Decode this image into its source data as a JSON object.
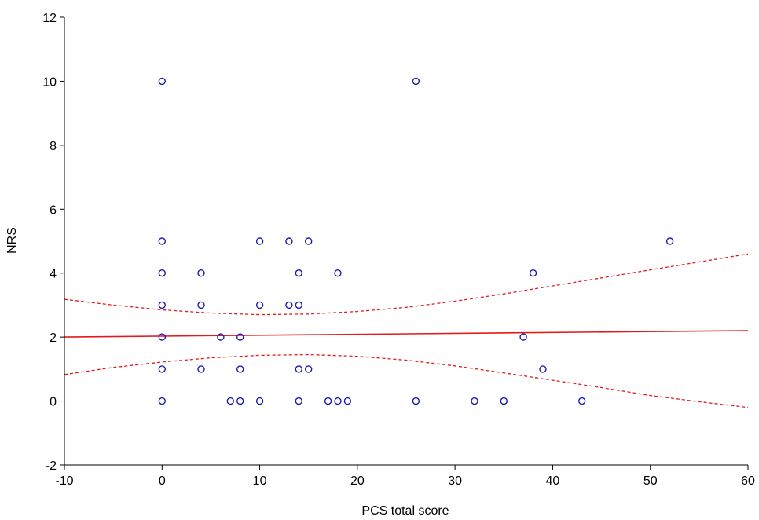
{
  "chart_data": {
    "type": "scatter",
    "title": "",
    "xlabel": "PCS total score",
    "ylabel": "NRS",
    "xlim": [
      -10,
      60
    ],
    "ylim": [
      -2,
      12
    ],
    "xticks": [
      -10,
      0,
      10,
      20,
      30,
      40,
      50,
      60
    ],
    "yticks": [
      -2,
      0,
      2,
      4,
      6,
      8,
      10,
      12
    ],
    "grid": false,
    "legend": "none",
    "colors": {
      "points": "#1a1ab8",
      "fit": "#e31a1c",
      "axis": "#000000"
    },
    "points": [
      {
        "x": 0,
        "y": 10
      },
      {
        "x": 26,
        "y": 10
      },
      {
        "x": 0,
        "y": 5
      },
      {
        "x": 10,
        "y": 5
      },
      {
        "x": 13,
        "y": 5
      },
      {
        "x": 15,
        "y": 5
      },
      {
        "x": 52,
        "y": 5
      },
      {
        "x": 0,
        "y": 4
      },
      {
        "x": 4,
        "y": 4
      },
      {
        "x": 14,
        "y": 4
      },
      {
        "x": 18,
        "y": 4
      },
      {
        "x": 38,
        "y": 4
      },
      {
        "x": 0,
        "y": 3
      },
      {
        "x": 4,
        "y": 3
      },
      {
        "x": 10,
        "y": 3
      },
      {
        "x": 13,
        "y": 3
      },
      {
        "x": 14,
        "y": 3
      },
      {
        "x": 0,
        "y": 2
      },
      {
        "x": 6,
        "y": 2
      },
      {
        "x": 8,
        "y": 2
      },
      {
        "x": 37,
        "y": 2
      },
      {
        "x": 0,
        "y": 1
      },
      {
        "x": 4,
        "y": 1
      },
      {
        "x": 8,
        "y": 1
      },
      {
        "x": 14,
        "y": 1
      },
      {
        "x": 15,
        "y": 1
      },
      {
        "x": 39,
        "y": 1
      },
      {
        "x": 0,
        "y": 0
      },
      {
        "x": 7,
        "y": 0
      },
      {
        "x": 8,
        "y": 0
      },
      {
        "x": 10,
        "y": 0
      },
      {
        "x": 14,
        "y": 0
      },
      {
        "x": 17,
        "y": 0
      },
      {
        "x": 18,
        "y": 0
      },
      {
        "x": 19,
        "y": 0
      },
      {
        "x": 26,
        "y": 0
      },
      {
        "x": 32,
        "y": 0
      },
      {
        "x": 35,
        "y": 0
      },
      {
        "x": 43,
        "y": 0
      }
    ],
    "regression_line": [
      {
        "x": -10,
        "y": 2.0
      },
      {
        "x": 60,
        "y": 2.2
      }
    ],
    "confidence_upper": [
      {
        "x": -10,
        "y": 3.18
      },
      {
        "x": -5,
        "y": 3.0
      },
      {
        "x": 0,
        "y": 2.85
      },
      {
        "x": 5,
        "y": 2.75
      },
      {
        "x": 10,
        "y": 2.7
      },
      {
        "x": 15,
        "y": 2.72
      },
      {
        "x": 20,
        "y": 2.8
      },
      {
        "x": 25,
        "y": 2.93
      },
      {
        "x": 30,
        "y": 3.12
      },
      {
        "x": 35,
        "y": 3.35
      },
      {
        "x": 40,
        "y": 3.6
      },
      {
        "x": 45,
        "y": 3.85
      },
      {
        "x": 50,
        "y": 4.1
      },
      {
        "x": 55,
        "y": 4.35
      },
      {
        "x": 60,
        "y": 4.6
      }
    ],
    "confidence_lower": [
      {
        "x": -10,
        "y": 0.83
      },
      {
        "x": -5,
        "y": 1.05
      },
      {
        "x": 0,
        "y": 1.22
      },
      {
        "x": 5,
        "y": 1.35
      },
      {
        "x": 10,
        "y": 1.43
      },
      {
        "x": 15,
        "y": 1.45
      },
      {
        "x": 20,
        "y": 1.4
      },
      {
        "x": 25,
        "y": 1.28
      },
      {
        "x": 30,
        "y": 1.1
      },
      {
        "x": 35,
        "y": 0.88
      },
      {
        "x": 40,
        "y": 0.65
      },
      {
        "x": 45,
        "y": 0.42
      },
      {
        "x": 50,
        "y": 0.17
      },
      {
        "x": 55,
        "y": -0.02
      },
      {
        "x": 60,
        "y": -0.2
      }
    ]
  }
}
